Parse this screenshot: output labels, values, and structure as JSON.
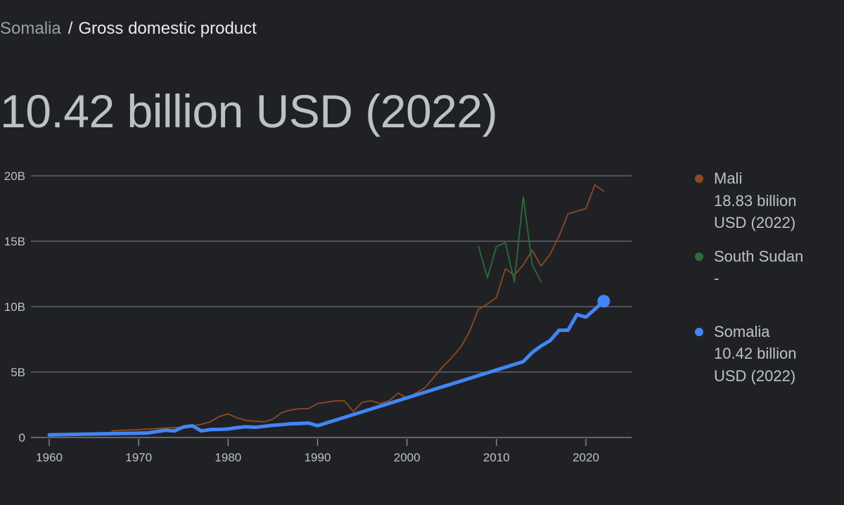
{
  "breadcrumb": {
    "parent": "Somalia",
    "separator": "/",
    "current": "Gross domestic product"
  },
  "headline": "10.42 billion USD (2022)",
  "legend": [
    {
      "name": "Mali",
      "value": "18.83 billion USD (2022)",
      "color": "#8d4a23"
    },
    {
      "name": "South Sudan",
      "value": "-",
      "color": "#2e6b3a"
    },
    {
      "name": "Somalia",
      "value": "10.42 billion USD (2022)",
      "color": "#4285f4"
    }
  ],
  "axes": {
    "y_ticks": [
      "0",
      "5B",
      "10B",
      "15B",
      "20B"
    ],
    "x_ticks": [
      "1960",
      "1970",
      "1980",
      "1990",
      "2000",
      "2010",
      "2020"
    ]
  },
  "chart_data": {
    "type": "line",
    "title": "Gross domestic product",
    "xlabel": "",
    "ylabel": "USD",
    "ylim": [
      0,
      20
    ],
    "xlim": [
      1959,
      2024
    ],
    "y_unit": "billion USD",
    "grid": true,
    "legend_position": "right",
    "y_tick_labels": [
      "0",
      "5B",
      "10B",
      "15B",
      "20B"
    ],
    "x_tick_labels": [
      "1960",
      "1970",
      "1980",
      "1990",
      "2000",
      "2010",
      "2020"
    ],
    "series": [
      {
        "name": "Mali",
        "color": "#8d4a23",
        "latest": "18.83 billion USD (2022)",
        "x": [
          1967,
          1970,
          1975,
          1976,
          1977,
          1978,
          1979,
          1980,
          1981,
          1982,
          1983,
          1984,
          1985,
          1986,
          1987,
          1988,
          1989,
          1990,
          1991,
          1992,
          1993,
          1994,
          1995,
          1996,
          1997,
          1998,
          1999,
          2000,
          2001,
          2002,
          2003,
          2004,
          2005,
          2006,
          2007,
          2008,
          2009,
          2010,
          2011,
          2012,
          2013,
          2014,
          2015,
          2016,
          2017,
          2018,
          2019,
          2020,
          2021,
          2022
        ],
        "values": [
          0.5,
          0.6,
          0.8,
          0.9,
          1.0,
          1.2,
          1.6,
          1.8,
          1.5,
          1.3,
          1.25,
          1.2,
          1.4,
          1.9,
          2.1,
          2.2,
          2.2,
          2.6,
          2.7,
          2.8,
          2.8,
          2.0,
          2.7,
          2.8,
          2.6,
          2.8,
          3.4,
          3.0,
          3.4,
          3.8,
          4.6,
          5.4,
          6.1,
          6.9,
          8.1,
          9.8,
          10.2,
          10.7,
          12.9,
          12.4,
          13.2,
          14.3,
          13.1,
          14.0,
          15.4,
          17.1,
          17.3,
          17.5,
          19.3,
          18.83
        ]
      },
      {
        "name": "South Sudan",
        "color": "#2e6b3a",
        "latest": "-",
        "x": [
          2008,
          2009,
          2010,
          2011,
          2012,
          2013,
          2014,
          2015
        ],
        "values": [
          14.6,
          12.2,
          14.6,
          14.9,
          11.9,
          18.4,
          13.2,
          11.9
        ]
      },
      {
        "name": "Somalia",
        "color": "#4285f4",
        "latest": "10.42 billion USD (2022)",
        "x": [
          1960,
          1965,
          1970,
          1971,
          1972,
          1973,
          1974,
          1975,
          1976,
          1977,
          1978,
          1979,
          1980,
          1981,
          1982,
          1983,
          1984,
          1985,
          1986,
          1987,
          1988,
          1989,
          1990,
          2013,
          2014,
          2015,
          2016,
          2017,
          2018,
          2019,
          2020,
          2021,
          2022
        ],
        "values": [
          0.2,
          0.27,
          0.33,
          0.35,
          0.45,
          0.55,
          0.5,
          0.8,
          0.9,
          0.5,
          0.6,
          0.62,
          0.65,
          0.75,
          0.82,
          0.78,
          0.85,
          0.93,
          0.98,
          1.05,
          1.07,
          1.1,
          0.9,
          5.8,
          6.5,
          7.0,
          7.4,
          8.2,
          8.2,
          9.4,
          9.2,
          9.8,
          10.42
        ]
      }
    ]
  }
}
